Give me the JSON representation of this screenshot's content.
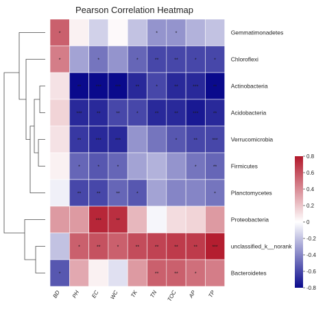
{
  "chart_data": {
    "type": "heatmap",
    "title": "Pearson Correlation Heatmap",
    "columns": [
      "BD",
      "PH",
      "EC",
      "WC",
      "TK",
      "TN",
      "TOC",
      "AP",
      "TP"
    ],
    "rows": [
      "Gemmatimonadetes",
      "Chloroflexi",
      "Actinobacteria",
      "Acidobacteria",
      "Verrucomicrobia",
      "Firmicutes",
      "Planctomycetes",
      "Proteobacteria",
      "unclassified_k__norank",
      "Bacteroidetes"
    ],
    "values": [
      [
        0.55,
        0.05,
        -0.15,
        0.02,
        -0.2,
        -0.35,
        -0.35,
        -0.25,
        -0.2
      ],
      [
        0.45,
        -0.3,
        -0.45,
        -0.35,
        -0.5,
        -0.6,
        -0.6,
        -0.6,
        -0.6
      ],
      [
        0.1,
        -0.85,
        -0.8,
        -0.8,
        -0.7,
        -0.6,
        -0.7,
        -0.7,
        -0.85
      ],
      [
        0.15,
        -0.7,
        -0.7,
        -0.6,
        -0.6,
        -0.7,
        -0.7,
        -0.75,
        -0.7
      ],
      [
        0.1,
        -0.65,
        -0.7,
        -0.7,
        -0.35,
        -0.45,
        -0.55,
        -0.6,
        -0.6
      ],
      [
        0.05,
        -0.5,
        -0.55,
        -0.5,
        -0.3,
        -0.25,
        -0.35,
        -0.45,
        -0.5
      ],
      [
        -0.05,
        -0.6,
        -0.6,
        -0.5,
        -0.55,
        -0.3,
        -0.4,
        -0.4,
        -0.45
      ],
      [
        0.35,
        0.35,
        0.75,
        0.72,
        0.25,
        -0.03,
        0.12,
        0.15,
        0.35
      ],
      [
        -0.2,
        0.55,
        0.6,
        0.55,
        0.62,
        0.65,
        0.68,
        0.68,
        0.78
      ],
      [
        -0.55,
        0.3,
        0.05,
        -0.1,
        0.35,
        0.55,
        0.55,
        0.5,
        0.45
      ]
    ],
    "significance": [
      [
        "*",
        "",
        "",
        "",
        "",
        "*",
        "*",
        "",
        ""
      ],
      [
        "*",
        "",
        "*",
        "",
        "*",
        "**",
        "**",
        "*",
        "*"
      ],
      [
        "",
        "**",
        "***",
        "***",
        "**",
        "*",
        "**",
        "***",
        "**"
      ],
      [
        "",
        "***",
        "**",
        "**",
        "*",
        "**",
        "**",
        "***",
        "**"
      ],
      [
        "",
        "**",
        "***",
        "***",
        "",
        "",
        "*",
        "**",
        "***"
      ],
      [
        "",
        "*",
        "*",
        "*",
        "",
        "",
        "",
        "*",
        "**"
      ],
      [
        "",
        "**",
        "**",
        "**",
        "*",
        "",
        "",
        "",
        "*"
      ],
      [
        "",
        "",
        "***",
        "**",
        "",
        "",
        "",
        "",
        ""
      ],
      [
        "",
        "*",
        "**",
        "*",
        "**",
        "**",
        "**",
        "**",
        "***"
      ],
      [
        "*",
        "",
        "",
        "",
        "",
        "**",
        "**",
        "*",
        ""
      ]
    ],
    "colorbar": {
      "min": -0.8,
      "max": 0.8,
      "ticks": [
        0.8,
        0.6,
        0.4,
        0.2,
        0,
        -0.2,
        -0.4,
        -0.6,
        -0.8
      ],
      "colors": {
        "low": "#0a0a8c",
        "mid": "#ffffff",
        "high": "#b2182b"
      }
    },
    "legend_position": "right",
    "dendrogram": "rows-left"
  }
}
